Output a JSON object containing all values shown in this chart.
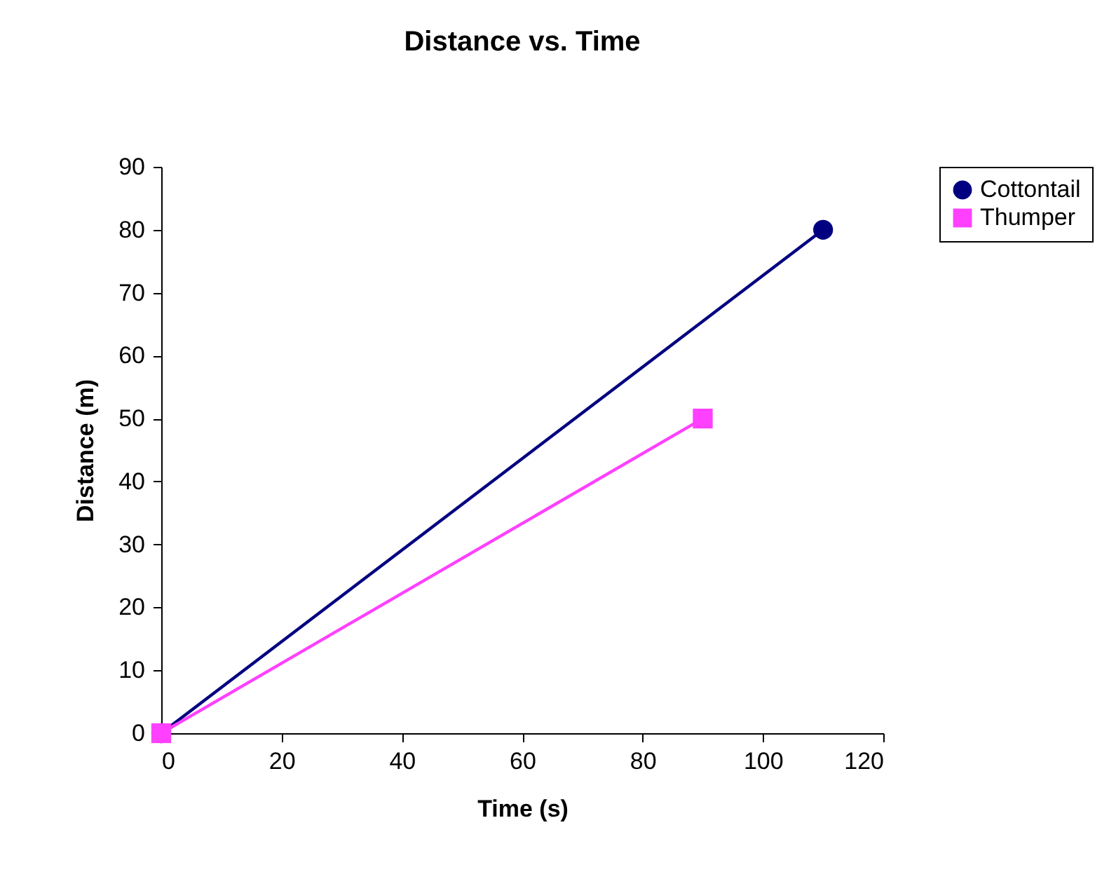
{
  "chart_data": {
    "type": "line",
    "title": "Distance vs. Time",
    "xlabel": "Time (s)",
    "ylabel": "Distance (m)",
    "xlim": [
      0,
      120
    ],
    "xticks": [
      0,
      20,
      40,
      60,
      80,
      100,
      120
    ],
    "ylim": [
      0,
      90
    ],
    "yticks": [
      0,
      10,
      20,
      30,
      40,
      50,
      60,
      70,
      80,
      90
    ],
    "grid": false,
    "legend": "right",
    "line_style": "solid",
    "series": [
      {
        "name": "Cottontail",
        "color": "#000080",
        "marker": "circle",
        "x": [
          0,
          110
        ],
        "values": [
          0,
          80
        ]
      },
      {
        "name": "Thumper",
        "color": "#ff40ff",
        "marker": "square",
        "x": [
          0,
          90
        ],
        "values": [
          0,
          50
        ]
      }
    ]
  }
}
